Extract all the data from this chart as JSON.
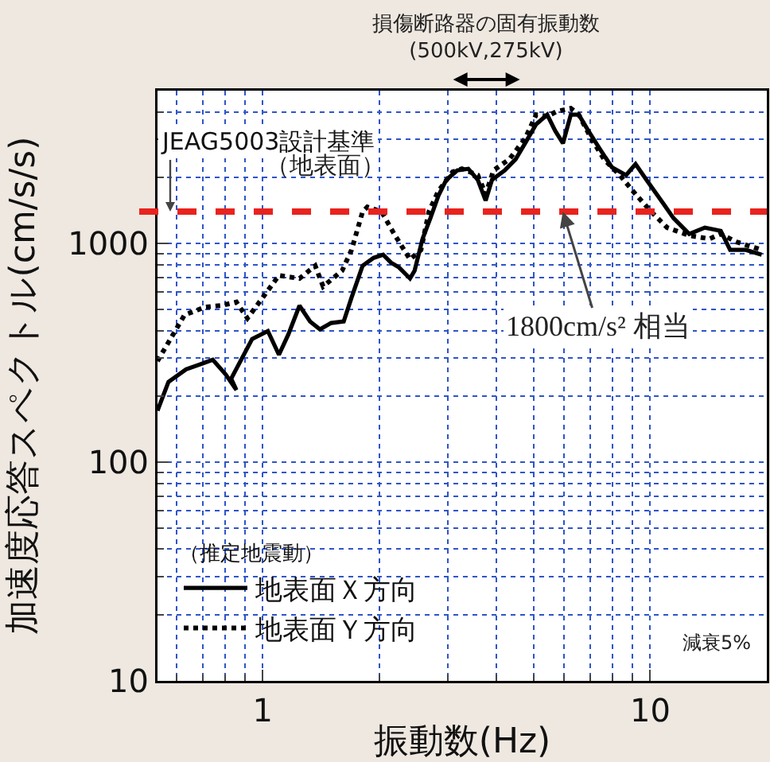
{
  "chart_data": {
    "type": "line",
    "xlabel": "振動数(Hz)",
    "ylabel": "加速度応答スペクトル(cm/s/s)",
    "legend_title": "（推定地震動）",
    "log": "xy",
    "grid": true,
    "legend": "bottom left",
    "xlim": [
      0.535,
      20
    ],
    "xticks": [
      1,
      10
    ],
    "ylim": [
      10,
      5000
    ],
    "yticks": [
      10,
      100,
      1000
    ],
    "series": [
      {
        "name": "地表面Ｘ方向",
        "color": "#000000",
        "line_style": "solid",
        "x": [
          0.535,
          0.571,
          0.634,
          0.743,
          0.801,
          0.855,
          0.829,
          0.939,
          1.031,
          1.101,
          1.165,
          1.244,
          1.325,
          1.405,
          1.501,
          1.618,
          1.695,
          1.81,
          1.933,
          2.045,
          2.143,
          2.246,
          2.399,
          2.466,
          2.585,
          2.709,
          2.84,
          2.976,
          3.177,
          3.393,
          3.589,
          3.761,
          3.905,
          4.21,
          4.496,
          4.755,
          5.077,
          5.422,
          5.682,
          5.954,
          6.24,
          6.54,
          6.918,
          7.388,
          7.962,
          8.665,
          9.166,
          9.786,
          10.75,
          11.48,
          12.61,
          13.84,
          15.21,
          16.08,
          17.66,
          19.4
        ],
        "values": [
          172,
          233,
          266,
          294,
          253,
          214,
          241,
          366,
          398,
          310,
          385,
          520,
          440,
          405,
          433,
          440,
          566,
          791,
          860,
          889,
          818,
          778,
          692,
          752,
          1051,
          1307,
          1653,
          1954,
          2160,
          2197,
          1954,
          1572,
          1954,
          2160,
          2430,
          2872,
          3512,
          3883,
          3285,
          2872,
          3883,
          3883,
          3285,
          2732,
          2234,
          2055,
          2310,
          1954,
          1546,
          1307,
          1106,
          1182,
          1143,
          935,
          935,
          889
        ]
      },
      {
        "name": "地表面Ｙ方向",
        "color": "#000000",
        "line_style": "dotted",
        "x": [
          0.535,
          0.628,
          0.709,
          0.779,
          0.855,
          0.913,
          1.0,
          1.101,
          1.244,
          1.366,
          1.432,
          1.603,
          1.695,
          1.81,
          1.862,
          2.026,
          2.184,
          2.399,
          2.561,
          2.684,
          2.84,
          3.09,
          3.268,
          3.589,
          3.761,
          3.942,
          4.33,
          4.755,
          5.077,
          5.422,
          5.735,
          6.24,
          6.54,
          7.047,
          7.598,
          8.346,
          9.166,
          10.06,
          11.06,
          12.61,
          14.24,
          15.21,
          16.7,
          19.4
        ],
        "values": [
          290,
          471,
          512,
          520,
          540,
          455,
          566,
          715,
          692,
          791,
          636,
          752,
          935,
          1398,
          1470,
          1398,
          1106,
          846,
          935,
          1398,
          1738,
          2125,
          2197,
          2055,
          1681,
          2160,
          2430,
          3020,
          3883,
          3818,
          4015,
          4152,
          3883,
          3020,
          2430,
          2055,
          1681,
          1398,
          1182,
          1088,
          1051,
          1106,
          1017,
          935
        ]
      }
    ],
    "ref_lines": [
      {
        "axis": "y",
        "value": 1400,
        "color": "#e8231e",
        "line_style": "dashed",
        "label": "JEAG5003設計基準"
      }
    ],
    "annotations": [
      {
        "text": "1800cm/s² 相当",
        "x": 5.95,
        "y": 1400
      },
      "損傷断路器の固有振動数\n(500kV,275kV)",
      "（地表面）",
      "減衰5%"
    ]
  }
}
